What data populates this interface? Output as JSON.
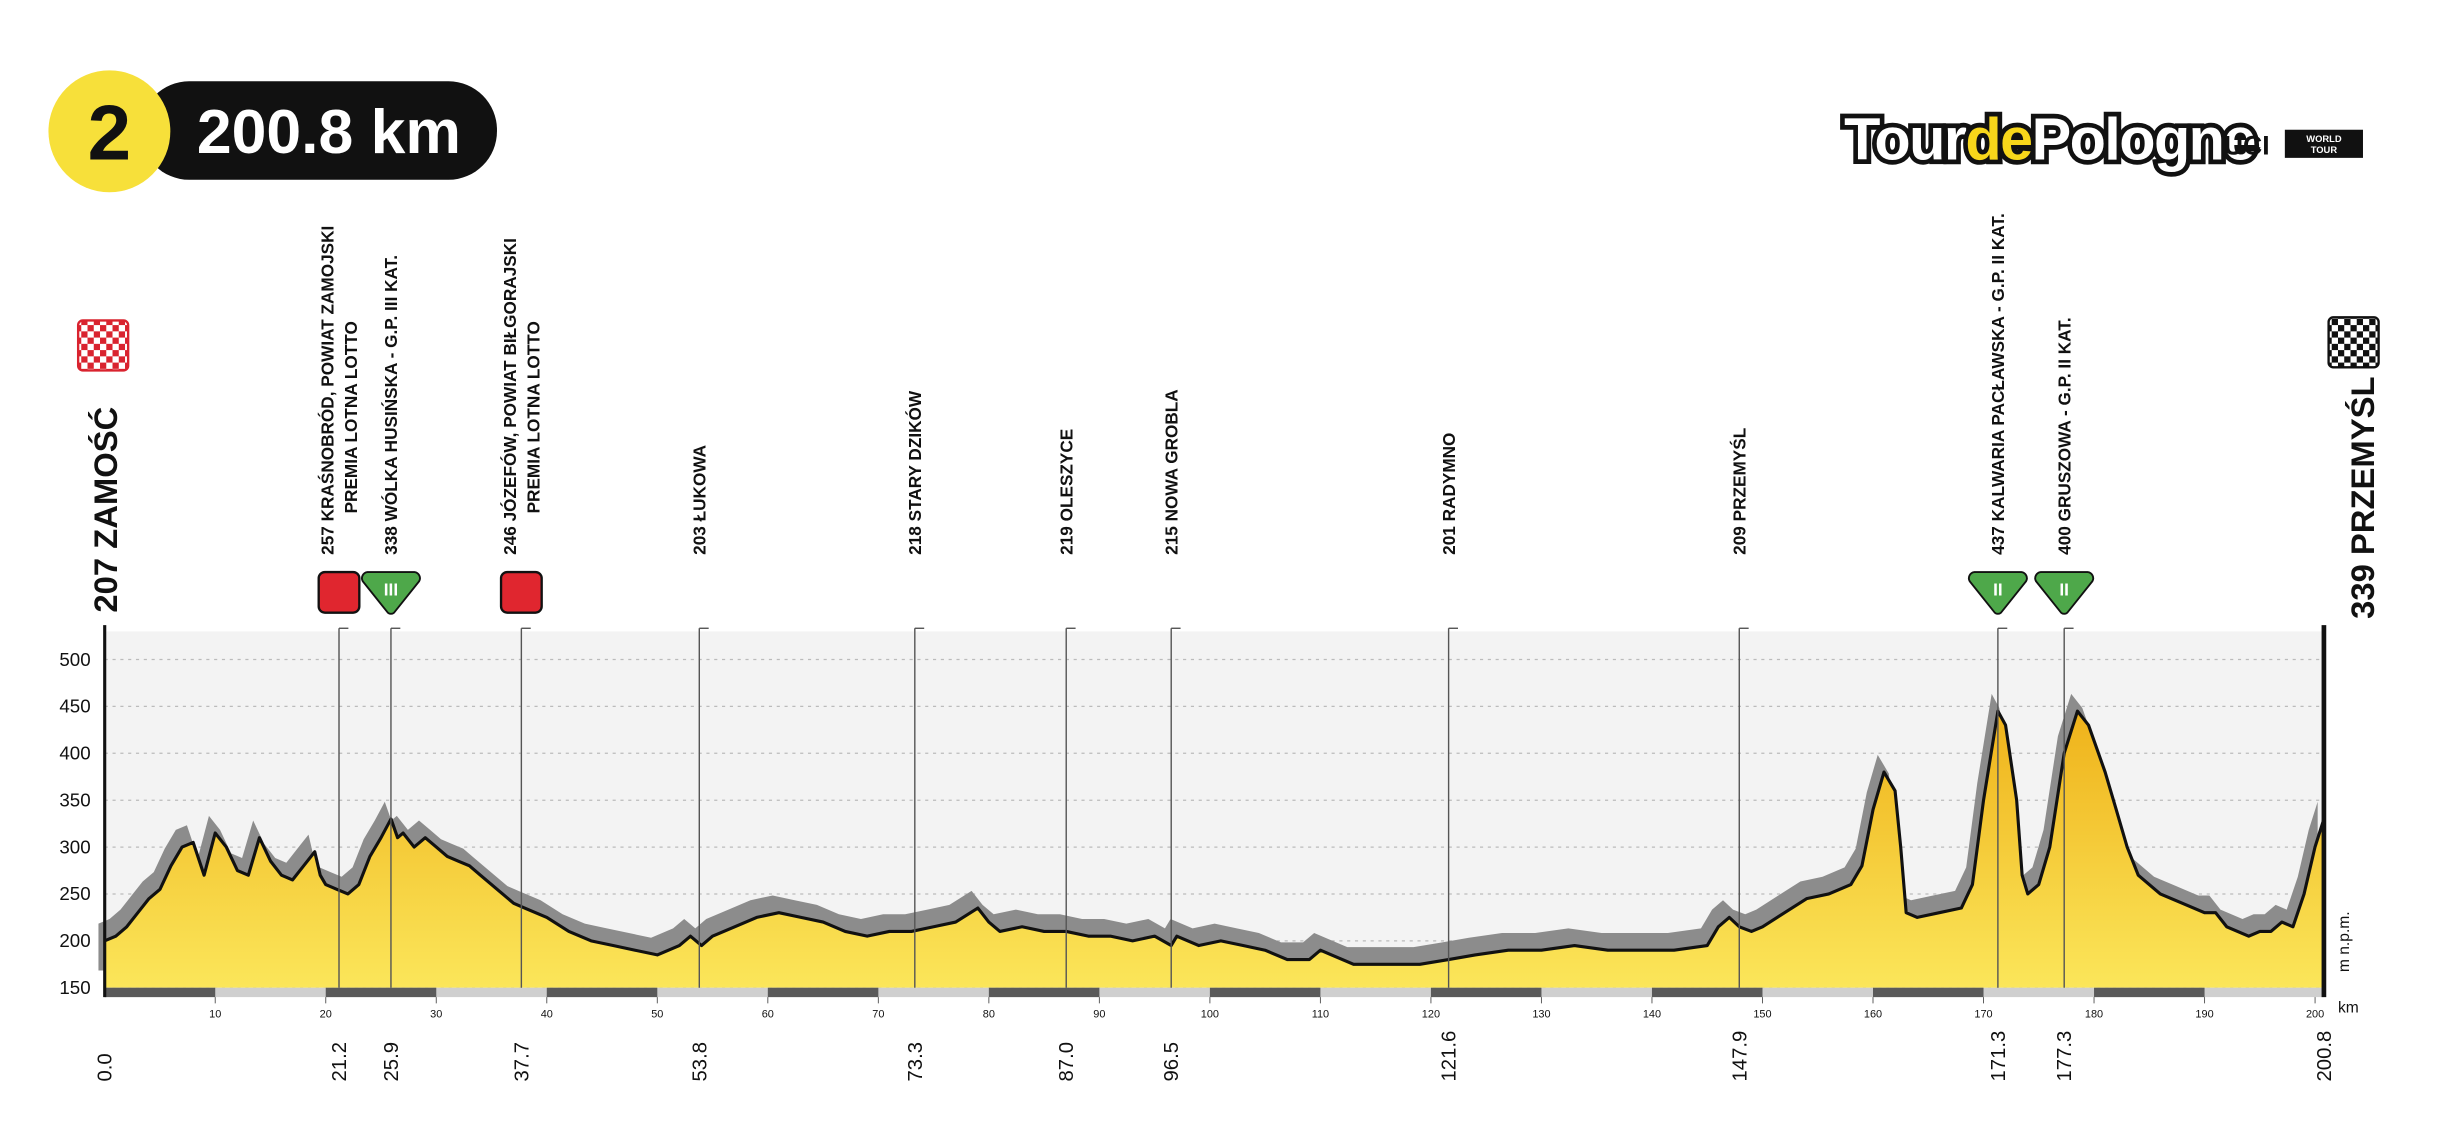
{
  "header": {
    "stage": "2",
    "distance": "200.8 km"
  },
  "logo": {
    "parts": [
      "Tour",
      "de",
      "Pologne"
    ],
    "uci": "UCI",
    "world_tour": [
      "WORLD",
      "TOUR"
    ]
  },
  "chart_data": {
    "type": "area",
    "x": [
      0,
      1,
      2,
      3,
      4,
      5,
      6,
      7,
      8,
      9,
      10,
      11,
      12,
      13,
      14,
      15,
      16,
      17,
      18,
      19,
      19.5,
      20,
      21,
      22,
      23,
      24,
      25,
      25.9,
      26.5,
      27,
      28,
      29,
      30,
      31,
      32,
      33,
      34,
      35,
      36,
      37,
      38,
      40,
      42,
      44,
      46,
      48,
      50,
      52,
      53,
      54,
      55,
      57,
      59,
      61,
      63,
      65,
      67,
      69,
      71,
      73,
      75,
      77,
      79,
      80,
      81,
      83,
      85,
      87,
      89,
      91,
      93,
      95,
      96.5,
      97,
      99,
      101,
      103,
      105,
      107,
      109,
      110,
      111,
      113,
      116,
      119,
      121.6,
      124,
      127,
      130,
      133,
      136,
      139,
      142,
      145,
      146,
      147,
      147.9,
      149,
      150,
      152,
      154,
      156,
      158,
      159,
      160,
      161,
      162,
      162.5,
      163,
      164,
      166,
      168,
      169,
      170,
      171.3,
      172,
      173,
      173.5,
      174,
      175,
      176,
      177.3,
      178.5,
      179.5,
      181,
      182,
      183,
      184,
      186,
      188,
      190,
      191,
      192,
      194,
      195,
      196,
      197,
      198,
      199,
      200,
      200.8
    ],
    "values": [
      200,
      205,
      215,
      230,
      245,
      255,
      280,
      300,
      305,
      270,
      315,
      300,
      275,
      270,
      310,
      285,
      270,
      265,
      280,
      295,
      270,
      260,
      255,
      250,
      260,
      290,
      310,
      330,
      310,
      315,
      300,
      310,
      300,
      290,
      285,
      280,
      270,
      260,
      250,
      240,
      235,
      225,
      210,
      200,
      195,
      190,
      185,
      195,
      205,
      195,
      205,
      215,
      225,
      230,
      225,
      220,
      210,
      205,
      210,
      210,
      215,
      220,
      235,
      220,
      210,
      215,
      210,
      210,
      205,
      205,
      200,
      205,
      195,
      205,
      195,
      200,
      195,
      190,
      180,
      180,
      190,
      185,
      175,
      175,
      175,
      180,
      185,
      190,
      190,
      195,
      190,
      190,
      190,
      195,
      215,
      225,
      215,
      210,
      215,
      230,
      245,
      250,
      260,
      280,
      340,
      380,
      360,
      300,
      230,
      225,
      230,
      235,
      260,
      350,
      445,
      430,
      350,
      270,
      250,
      260,
      300,
      400,
      445,
      430,
      380,
      340,
      300,
      270,
      250,
      240,
      230,
      230,
      215,
      205,
      210,
      210,
      220,
      215,
      250,
      300,
      330
    ],
    "color": "#efb21a",
    "xlim": [
      0,
      200.8
    ],
    "ylim": [
      150,
      530
    ],
    "yticks": [
      150,
      200,
      250,
      300,
      350,
      400,
      450,
      500
    ],
    "xticks": [
      10,
      20,
      30,
      40,
      50,
      60,
      70,
      80,
      90,
      100,
      110,
      120,
      130,
      140,
      150,
      160,
      170,
      180,
      190,
      200
    ],
    "grid": true,
    "y_unit": "m n.p.m.",
    "x_unit": "km",
    "waypoints": [
      {
        "km": {
          "value": 0,
          "label": "0.0"
        },
        "lines": [
          "207 ZAMOŚĆ"
        ],
        "icon": "start"
      },
      {
        "km": 21.2,
        "lines": [
          "257 KRAŚNOBRÓD, POWIAT ZAMOJSKI",
          "PREMIA LOTNA LOTTO"
        ],
        "icon": "sprint"
      },
      {
        "km": 25.9,
        "lines": [
          "338 WÓLKA HUSIŃSKA - G.P. III KAT."
        ],
        "icon": "climb",
        "climb": "III"
      },
      {
        "km": 37.7,
        "lines": [
          "246 JÓZEFÓW, POWIAT BIŁGORAJSKI",
          "PREMIA LOTNA LOTTO"
        ],
        "icon": "sprint"
      },
      {
        "km": 53.8,
        "lines": [
          "203 ŁUKOWA"
        ]
      },
      {
        "km": 73.3,
        "lines": [
          "218 STARY DZIKÓW"
        ]
      },
      {
        "km": {
          "value": 87,
          "label": "87.0"
        },
        "lines": [
          "219 OLESZYCE"
        ]
      },
      {
        "km": 96.5,
        "lines": [
          "215 NOWA GROBLA"
        ]
      },
      {
        "km": 121.6,
        "lines": [
          "201 RADYMNO"
        ]
      },
      {
        "km": 147.9,
        "lines": [
          "209 PRZEMYŚL"
        ]
      },
      {
        "km": 171.3,
        "lines": [
          "437 KALWARIA PACŁAWSKA - G.P. II KAT."
        ],
        "icon": "climb",
        "climb": "II"
      },
      {
        "km": 177.3,
        "lines": [
          "400 GRUSZOWA - G.P. II KAT."
        ],
        "icon": "climb",
        "climb": "II"
      },
      {
        "km": 200.8,
        "lines": [
          "339 PRZEMYŚL"
        ],
        "icon": "finish"
      }
    ]
  }
}
